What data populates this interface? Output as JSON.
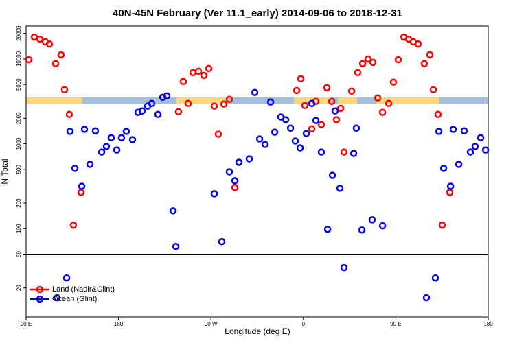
{
  "chart_data": {
    "type": "scatter",
    "title": "40N-45N February (Ver 11.1_early)   2014-09-06 to 2018-12-31",
    "x_label": "Longitude (deg E)",
    "y_label": "N Total",
    "log_y": true,
    "legend": "bottom-left",
    "hline": 50,
    "xlim": [
      90,
      540
    ],
    "ylim": [
      9.1,
      24400
    ],
    "xticks": [
      {
        "value": 90,
        "label": "90 E"
      },
      180,
      {
        "value": 270,
        "label": "90 W"
      },
      {
        "value": 360,
        "label": "0"
      },
      {
        "value": 450,
        "label": "90 E"
      },
      {
        "value": 540,
        "label": "180"
      }
    ],
    "yticks": [
      20,
      50,
      100,
      200,
      500,
      1000,
      2000,
      5000,
      10000,
      20000
    ],
    "series": [
      {
        "name": "Land (Nadir&Glint)",
        "color": "#ff0000",
        "x": [
          92.7,
          98.0,
          103.4,
          108.7,
          112.7,
          118.8,
          124.1,
          127.4,
          132.1,
          136.1,
          143.5,
          238.4,
          243.1,
          247.8,
          252.5,
          257.8,
          263.2,
          267.9,
          273.2,
          277.2,
          282.6,
          287.9,
          293.3,
          353.5,
          357.5,
          361.5,
          368.2,
          372.2,
          377.5,
          382.9,
          387.6,
          392.2,
          396.3,
          399.6,
          407.0,
          413.0,
          417.7,
          423.0,
          427.7,
          432.4,
          437.1,
          443.1,
          447.7,
          452.4,
          457.8,
          462.5,
          467.1,
          471.8,
          477.8,
          483.2,
          486.5,
          491.2,
          495.2,
          502.6
        ],
        "values": [
          9800,
          18100,
          17100,
          15900,
          15000,
          8790,
          11200,
          4340,
          2220,
          110,
          267,
          2390,
          5420,
          2990,
          6900,
          7160,
          6400,
          7710,
          2780,
          1300,
          2940,
          3340,
          305,
          4250,
          5840,
          2830,
          1500,
          3160,
          1680,
          4580,
          3160,
          1920,
          2620,
          800,
          4180,
          6900,
          8790,
          10000,
          9110,
          3470,
          2350,
          2990,
          5320,
          9800,
          18100,
          17100,
          15900,
          15000,
          8790,
          11200,
          4340,
          2220,
          110,
          267
        ]
      },
      {
        "name": "Ocean (Glint)",
        "color": "#0000ee",
        "x": [
          120.1,
          129.5,
          132.8,
          137.5,
          144.2,
          146.8,
          152.2,
          157.5,
          163.6,
          168.2,
          172.9,
          178.3,
          182.9,
          187.6,
          193.6,
          199.0,
          203.0,
          208.4,
          212.4,
          218.4,
          223.1,
          227.1,
          233.1,
          235.8,
          273.2,
          280.6,
          287.9,
          293.3,
          297.3,
          307.3,
          312.7,
          317.4,
          322.7,
          328.1,
          332.1,
          338.1,
          342.8,
          347.5,
          352.1,
          356.8,
          362.8,
          368.2,
          372.2,
          377.5,
          383.6,
          388.3,
          390.9,
          395.6,
          399.6,
          409.0,
          411.6,
          417.0,
          427.0,
          437.1,
          479.8,
          488.5,
          491.9,
          496.6,
          503.3,
          505.9,
          511.3,
          516.6,
          522.6,
          527.3,
          532.7,
          537.4
        ],
        "values": [
          15.3,
          26.2,
          1400,
          513,
          316,
          1480,
          573,
          1420,
          800,
          929,
          1180,
          845,
          1180,
          1400,
          1120,
          2350,
          2440,
          2780,
          2990,
          2220,
          3530,
          3670,
          162,
          61.7,
          258,
          70.3,
          467,
          367,
          606,
          665,
          4030,
          1140,
          982,
          3110,
          1370,
          2070,
          1920,
          1530,
          1080,
          895,
          1320,
          2990,
          1880,
          800,
          98,
          425,
          2440,
          299,
          34.7,
          771,
          1530,
          96.4,
          127,
          108,
          15.3,
          26.2,
          1400,
          513,
          316,
          1480,
          573,
          1420,
          800,
          929,
          1180,
          845
        ]
      }
    ]
  }
}
